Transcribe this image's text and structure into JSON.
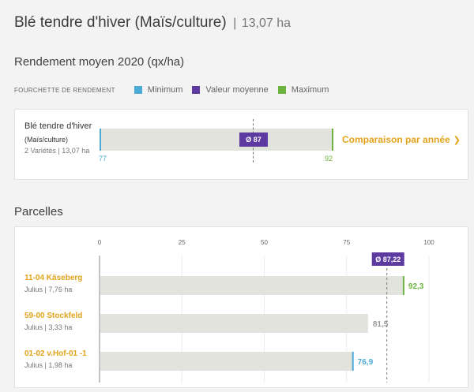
{
  "header": {
    "title": "Blé tendre d'hiver (Maïs/culture)",
    "separator": "|",
    "area": "13,07 ha"
  },
  "yield_section": {
    "title": "Rendement moyen 2020 (qx/ha)",
    "legend_label": "FOURCHETTE DE RENDEMENT",
    "legend": [
      {
        "label": "Minimum",
        "color": "#4baad6"
      },
      {
        "label": "Valeur moyenne",
        "color": "#5c3aa0"
      },
      {
        "label": "Maximum",
        "color": "#6cb33f"
      }
    ]
  },
  "summary": {
    "crop": "Blé tendre d'hiver",
    "culture": "(Maïs/culture)",
    "meta": "2 Variétés | 13,07 ha",
    "min_label": "77",
    "max_label": "92",
    "avg_label": "Ø 87",
    "compare_label": "Comparaison par année",
    "compare_chevron": "❯"
  },
  "parcels_section": {
    "title": "Parcelles"
  },
  "chart_data": {
    "type": "bar",
    "orientation": "horizontal",
    "x_ticks": [
      "0",
      "25",
      "50",
      "75",
      "100"
    ],
    "xlim": [
      0,
      100
    ],
    "average": {
      "value": 87.22,
      "label": "Ø 87,22"
    },
    "categories": [
      "11-04 Käseberg",
      "59-00 Stockfeld",
      "01-02 v.Hof-01 -1"
    ],
    "meta": [
      "Julius | 7,76 ha",
      "Julius | 3,33 ha",
      "Julius | 1,98 ha"
    ],
    "values": [
      92.3,
      81.5,
      76.9
    ],
    "value_labels": [
      "92,3",
      "81,5",
      "76,9"
    ],
    "markers": [
      "max",
      "none",
      "min"
    ],
    "colors": {
      "bar": "#e3e3dd",
      "min": "#4baad6",
      "max": "#6cb33f",
      "avg": "#5c3aa0",
      "neutral": "#999999"
    }
  }
}
